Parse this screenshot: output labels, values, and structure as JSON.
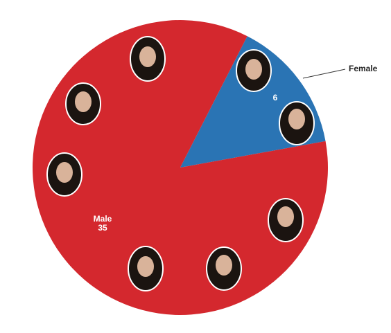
{
  "chart_data": {
    "type": "pie",
    "categories": [
      "Female",
      "Male"
    ],
    "values": [
      6,
      35
    ],
    "colors": [
      "#2a74b4",
      "#d4282e"
    ]
  }
}
